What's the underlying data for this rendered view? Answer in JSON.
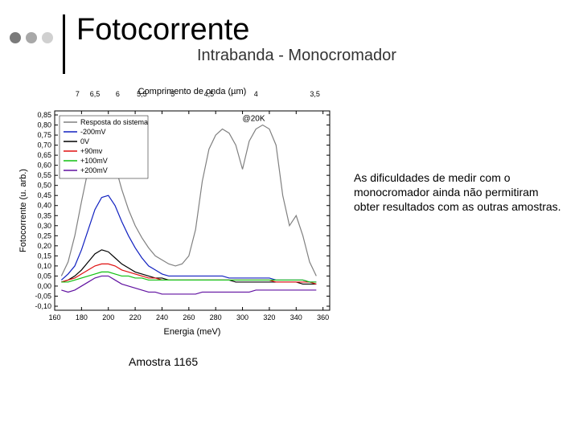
{
  "header": {
    "title": "Fotocorrente",
    "subtitle": "Intrabanda - Monocromador",
    "dot_colors": [
      "#7a7a7a",
      "#a8a8a8",
      "#d0d0d0"
    ]
  },
  "side_note": "As dificuldades de medir com o monocromador ainda não permitiram obter resultados com as outras amostras.",
  "caption": "Amostra 1165",
  "chart": {
    "type": "line",
    "background_color": "#ffffff",
    "axis_color": "#000000",
    "top_axis_label": "Comprimento de onda (µm)",
    "x_axis_label": "Energia (meV)",
    "y_axis_label": "Fotocorrente (u. arb.)",
    "title_fontsize": 11,
    "tick_fontsize": 9,
    "annotation": "@20K",
    "x_ticks": [
      160,
      180,
      200,
      220,
      240,
      260,
      280,
      300,
      320,
      340,
      360
    ],
    "y_ticks": [
      -0.1,
      -0.05,
      0.0,
      0.05,
      0.1,
      0.15,
      0.2,
      0.25,
      0.3,
      0.35,
      0.4,
      0.45,
      0.5,
      0.55,
      0.6,
      0.65,
      0.7,
      0.75,
      0.8,
      0.85
    ],
    "top_ticks_labels": [
      "7",
      "6,5",
      "6",
      "5,5",
      "5",
      "4,5",
      "4",
      "3,5"
    ],
    "top_ticks_energy": [
      177,
      190,
      207,
      225,
      248,
      275,
      310,
      354
    ],
    "xlim": [
      160,
      365
    ],
    "ylim": [
      -0.12,
      0.87
    ],
    "line_width": 1.2,
    "series": [
      {
        "name": "Resposta do sistema",
        "color": "#808080",
        "data": [
          [
            165,
            0.05
          ],
          [
            170,
            0.12
          ],
          [
            175,
            0.25
          ],
          [
            180,
            0.42
          ],
          [
            185,
            0.58
          ],
          [
            190,
            0.68
          ],
          [
            195,
            0.73
          ],
          [
            200,
            0.71
          ],
          [
            205,
            0.6
          ],
          [
            210,
            0.48
          ],
          [
            215,
            0.38
          ],
          [
            220,
            0.3
          ],
          [
            225,
            0.24
          ],
          [
            230,
            0.19
          ],
          [
            235,
            0.15
          ],
          [
            240,
            0.13
          ],
          [
            245,
            0.11
          ],
          [
            250,
            0.1
          ],
          [
            255,
            0.11
          ],
          [
            260,
            0.15
          ],
          [
            265,
            0.28
          ],
          [
            270,
            0.52
          ],
          [
            275,
            0.68
          ],
          [
            280,
            0.75
          ],
          [
            285,
            0.78
          ],
          [
            290,
            0.76
          ],
          [
            295,
            0.7
          ],
          [
            300,
            0.58
          ],
          [
            305,
            0.72
          ],
          [
            310,
            0.78
          ],
          [
            315,
            0.8
          ],
          [
            320,
            0.78
          ],
          [
            325,
            0.7
          ],
          [
            330,
            0.45
          ],
          [
            335,
            0.3
          ],
          [
            340,
            0.35
          ],
          [
            345,
            0.25
          ],
          [
            350,
            0.12
          ],
          [
            355,
            0.05
          ]
        ]
      },
      {
        "name": "-200mV",
        "color": "#1020c0",
        "data": [
          [
            165,
            0.03
          ],
          [
            170,
            0.06
          ],
          [
            175,
            0.1
          ],
          [
            180,
            0.18
          ],
          [
            185,
            0.28
          ],
          [
            190,
            0.38
          ],
          [
            195,
            0.44
          ],
          [
            200,
            0.45
          ],
          [
            205,
            0.4
          ],
          [
            210,
            0.32
          ],
          [
            215,
            0.25
          ],
          [
            220,
            0.19
          ],
          [
            225,
            0.14
          ],
          [
            230,
            0.1
          ],
          [
            235,
            0.08
          ],
          [
            240,
            0.06
          ],
          [
            245,
            0.05
          ],
          [
            250,
            0.05
          ],
          [
            255,
            0.05
          ],
          [
            260,
            0.05
          ],
          [
            265,
            0.05
          ],
          [
            270,
            0.05
          ],
          [
            275,
            0.05
          ],
          [
            280,
            0.05
          ],
          [
            285,
            0.05
          ],
          [
            290,
            0.04
          ],
          [
            295,
            0.04
          ],
          [
            300,
            0.04
          ],
          [
            305,
            0.04
          ],
          [
            310,
            0.04
          ],
          [
            315,
            0.04
          ],
          [
            320,
            0.04
          ],
          [
            325,
            0.03
          ],
          [
            330,
            0.03
          ],
          [
            335,
            0.03
          ],
          [
            340,
            0.03
          ],
          [
            345,
            0.03
          ],
          [
            350,
            0.02
          ],
          [
            355,
            0.02
          ]
        ]
      },
      {
        "name": "0V",
        "color": "#000000",
        "data": [
          [
            165,
            0.02
          ],
          [
            170,
            0.03
          ],
          [
            175,
            0.05
          ],
          [
            180,
            0.08
          ],
          [
            185,
            0.12
          ],
          [
            190,
            0.16
          ],
          [
            195,
            0.18
          ],
          [
            200,
            0.17
          ],
          [
            205,
            0.14
          ],
          [
            210,
            0.11
          ],
          [
            215,
            0.09
          ],
          [
            220,
            0.07
          ],
          [
            225,
            0.06
          ],
          [
            230,
            0.05
          ],
          [
            235,
            0.04
          ],
          [
            240,
            0.04
          ],
          [
            245,
            0.03
          ],
          [
            250,
            0.03
          ],
          [
            255,
            0.03
          ],
          [
            260,
            0.03
          ],
          [
            265,
            0.03
          ],
          [
            270,
            0.03
          ],
          [
            275,
            0.03
          ],
          [
            280,
            0.03
          ],
          [
            285,
            0.03
          ],
          [
            290,
            0.03
          ],
          [
            295,
            0.02
          ],
          [
            300,
            0.02
          ],
          [
            305,
            0.02
          ],
          [
            310,
            0.02
          ],
          [
            315,
            0.02
          ],
          [
            320,
            0.02
          ],
          [
            325,
            0.02
          ],
          [
            330,
            0.02
          ],
          [
            335,
            0.02
          ],
          [
            340,
            0.02
          ],
          [
            345,
            0.01
          ],
          [
            350,
            0.01
          ],
          [
            355,
            0.01
          ]
        ]
      },
      {
        "name": "+90mv",
        "color": "#e01010",
        "data": [
          [
            165,
            0.02
          ],
          [
            170,
            0.03
          ],
          [
            175,
            0.04
          ],
          [
            180,
            0.06
          ],
          [
            185,
            0.08
          ],
          [
            190,
            0.1
          ],
          [
            195,
            0.11
          ],
          [
            200,
            0.11
          ],
          [
            205,
            0.1
          ],
          [
            210,
            0.08
          ],
          [
            215,
            0.07
          ],
          [
            220,
            0.06
          ],
          [
            225,
            0.05
          ],
          [
            230,
            0.04
          ],
          [
            235,
            0.04
          ],
          [
            240,
            0.03
          ],
          [
            245,
            0.03
          ],
          [
            250,
            0.03
          ],
          [
            255,
            0.03
          ],
          [
            260,
            0.03
          ],
          [
            265,
            0.03
          ],
          [
            270,
            0.03
          ],
          [
            275,
            0.03
          ],
          [
            280,
            0.03
          ],
          [
            285,
            0.03
          ],
          [
            290,
            0.03
          ],
          [
            295,
            0.03
          ],
          [
            300,
            0.03
          ],
          [
            305,
            0.03
          ],
          [
            310,
            0.03
          ],
          [
            315,
            0.03
          ],
          [
            320,
            0.03
          ],
          [
            325,
            0.02
          ],
          [
            330,
            0.02
          ],
          [
            335,
            0.02
          ],
          [
            340,
            0.02
          ],
          [
            345,
            0.02
          ],
          [
            350,
            0.02
          ],
          [
            355,
            0.01
          ]
        ]
      },
      {
        "name": "+100mV",
        "color": "#10c010",
        "data": [
          [
            165,
            0.02
          ],
          [
            170,
            0.02
          ],
          [
            175,
            0.03
          ],
          [
            180,
            0.04
          ],
          [
            185,
            0.05
          ],
          [
            190,
            0.06
          ],
          [
            195,
            0.07
          ],
          [
            200,
            0.07
          ],
          [
            205,
            0.06
          ],
          [
            210,
            0.05
          ],
          [
            215,
            0.05
          ],
          [
            220,
            0.04
          ],
          [
            225,
            0.04
          ],
          [
            230,
            0.03
          ],
          [
            235,
            0.03
          ],
          [
            240,
            0.03
          ],
          [
            245,
            0.03
          ],
          [
            250,
            0.03
          ],
          [
            255,
            0.03
          ],
          [
            260,
            0.03
          ],
          [
            265,
            0.03
          ],
          [
            270,
            0.03
          ],
          [
            275,
            0.03
          ],
          [
            280,
            0.03
          ],
          [
            285,
            0.03
          ],
          [
            290,
            0.03
          ],
          [
            295,
            0.03
          ],
          [
            300,
            0.03
          ],
          [
            305,
            0.03
          ],
          [
            310,
            0.03
          ],
          [
            315,
            0.03
          ],
          [
            320,
            0.03
          ],
          [
            325,
            0.03
          ],
          [
            330,
            0.03
          ],
          [
            335,
            0.03
          ],
          [
            340,
            0.03
          ],
          [
            345,
            0.03
          ],
          [
            350,
            0.02
          ],
          [
            355,
            0.02
          ]
        ]
      },
      {
        "name": "+200mV",
        "color": "#6010a0",
        "data": [
          [
            165,
            -0.02
          ],
          [
            170,
            -0.03
          ],
          [
            175,
            -0.02
          ],
          [
            180,
            0.0
          ],
          [
            185,
            0.02
          ],
          [
            190,
            0.04
          ],
          [
            195,
            0.05
          ],
          [
            200,
            0.05
          ],
          [
            205,
            0.03
          ],
          [
            210,
            0.01
          ],
          [
            215,
            0.0
          ],
          [
            220,
            -0.01
          ],
          [
            225,
            -0.02
          ],
          [
            230,
            -0.03
          ],
          [
            235,
            -0.03
          ],
          [
            240,
            -0.04
          ],
          [
            245,
            -0.04
          ],
          [
            250,
            -0.04
          ],
          [
            255,
            -0.04
          ],
          [
            260,
            -0.04
          ],
          [
            265,
            -0.04
          ],
          [
            270,
            -0.03
          ],
          [
            275,
            -0.03
          ],
          [
            280,
            -0.03
          ],
          [
            285,
            -0.03
          ],
          [
            290,
            -0.03
          ],
          [
            295,
            -0.03
          ],
          [
            300,
            -0.03
          ],
          [
            305,
            -0.03
          ],
          [
            310,
            -0.02
          ],
          [
            315,
            -0.02
          ],
          [
            320,
            -0.02
          ],
          [
            325,
            -0.02
          ],
          [
            330,
            -0.02
          ],
          [
            335,
            -0.02
          ],
          [
            340,
            -0.02
          ],
          [
            345,
            -0.02
          ],
          [
            350,
            -0.02
          ],
          [
            355,
            -0.02
          ]
        ]
      }
    ]
  }
}
